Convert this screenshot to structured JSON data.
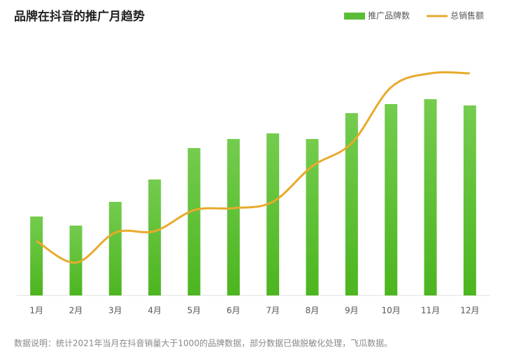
{
  "chart_data": {
    "type": "bar_line",
    "title": "品牌在抖音的推广月趋势",
    "categories": [
      "1月",
      "2月",
      "3月",
      "4月",
      "5月",
      "6月",
      "7月",
      "8月",
      "9月",
      "10月",
      "11月",
      "12月"
    ],
    "series": [
      {
        "name": "推广品牌数",
        "type": "bar",
        "color": "#5bbd36",
        "values": [
          113,
          100,
          134,
          166,
          211,
          224,
          232,
          224,
          261,
          274,
          281,
          272
        ]
      },
      {
        "name": "总销售额",
        "type": "line",
        "color": "#e8aa2c",
        "axis": "y2",
        "values": [
          78,
          47,
          90,
          92,
          122,
          125,
          134,
          185,
          218,
          298,
          318,
          318
        ]
      }
    ],
    "ylim": [
      0,
      400
    ],
    "y2lim": [
      0,
      400
    ],
    "legend": "top-right",
    "footnote": "数据说明：统计2021年当月在抖音销量大于1000的品牌数据，部分数据已做脱敏化处理，飞瓜数据。"
  }
}
